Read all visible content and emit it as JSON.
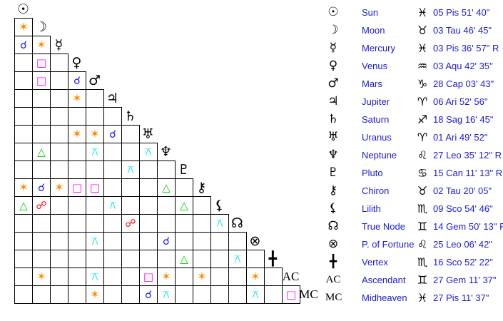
{
  "points": [
    {
      "name": "Sun",
      "glyph": "☉",
      "icon": "sun-icon",
      "sign_glyph": "♓",
      "sign_icon": "pisces-icon",
      "position": "05 Pis 51' 40\""
    },
    {
      "name": "Moon",
      "glyph": "☽",
      "icon": "moon-icon",
      "sign_glyph": "♉",
      "sign_icon": "taurus-icon",
      "position": "03 Tau 46' 45\""
    },
    {
      "name": "Mercury",
      "glyph": "☿",
      "icon": "mercury-icon",
      "sign_glyph": "♓",
      "sign_icon": "pisces-icon",
      "position": "03 Pis 36' 57\" R"
    },
    {
      "name": "Venus",
      "glyph": "♀",
      "icon": "venus-icon",
      "sign_glyph": "♒",
      "sign_icon": "aquarius-icon",
      "position": "03 Aqu 42' 35\""
    },
    {
      "name": "Mars",
      "glyph": "♂",
      "icon": "mars-icon",
      "sign_glyph": "♑",
      "sign_icon": "capricorn-icon",
      "position": "28 Cap 03' 43\""
    },
    {
      "name": "Jupiter",
      "glyph": "♃",
      "icon": "jupiter-icon",
      "sign_glyph": "♈",
      "sign_icon": "aries-icon",
      "position": "06 Ari 52' 56\""
    },
    {
      "name": "Saturn",
      "glyph": "♄",
      "icon": "saturn-icon",
      "sign_glyph": "♐",
      "sign_icon": "sagittarius-icon",
      "position": "18 Sag 16' 45\""
    },
    {
      "name": "Uranus",
      "glyph": "♅",
      "icon": "uranus-icon",
      "sign_glyph": "♈",
      "sign_icon": "aries-icon",
      "position": "01 Ari 49' 52\""
    },
    {
      "name": "Neptune",
      "glyph": "♆",
      "icon": "neptune-icon",
      "sign_glyph": "♌",
      "sign_icon": "leo-icon",
      "position": "27 Leo 35' 12\" R"
    },
    {
      "name": "Pluto",
      "glyph": "♇",
      "icon": "pluto-icon",
      "sign_glyph": "♋",
      "sign_icon": "cancer-icon",
      "position": "15 Can 11' 13\" R"
    },
    {
      "name": "Chiron",
      "glyph": "⚷",
      "icon": "chiron-icon",
      "sign_glyph": "♉",
      "sign_icon": "taurus-icon",
      "position": "02 Tau 20' 05\""
    },
    {
      "name": "Lilith",
      "glyph": "⚸",
      "icon": "lilith-icon",
      "sign_glyph": "♏",
      "sign_icon": "scorpio-icon",
      "position": "09 Sco 54' 46\""
    },
    {
      "name": "True Node",
      "glyph": "☊",
      "icon": "north-node-icon",
      "sign_glyph": "♊",
      "sign_icon": "gemini-icon",
      "position": "14 Gem 50' 13\" R"
    },
    {
      "name": "P. of Fortune",
      "glyph": "⊗",
      "icon": "part-of-fortune-icon",
      "sign_glyph": "♌",
      "sign_icon": "leo-icon",
      "position": "25 Leo 06' 42\""
    },
    {
      "name": "Vertex",
      "glyph": "╋",
      "icon": "vertex-icon",
      "sign_glyph": "♏",
      "sign_icon": "scorpio-icon",
      "position": "16 Sco 52' 22\""
    },
    {
      "name": "Ascendant",
      "glyph": "AC",
      "icon": "ascendant-icon",
      "sign_glyph": "♊",
      "sign_icon": "gemini-icon",
      "position": "27 Gem 11' 37\""
    },
    {
      "name": "Midheaven",
      "glyph": "MC",
      "icon": "midheaven-icon",
      "sign_glyph": "♓",
      "sign_icon": "pisces-icon",
      "position": "27 Pis 11' 37\""
    }
  ],
  "aspect_types": {
    "conjunction": {
      "glyph": "☌",
      "color": "#1a1aff"
    },
    "sextile": {
      "glyph": "✶",
      "color": "#ff8c00"
    },
    "square": {
      "glyph": "□",
      "color": "#ff00ff"
    },
    "trine": {
      "glyph": "△",
      "color": "#00cc00"
    },
    "opposition": {
      "glyph": "☍",
      "color": "#ff0000"
    },
    "quincunx": {
      "glyph": "⚻",
      "color": "#00e5e5"
    }
  },
  "aspects": [
    {
      "a": 1,
      "b": 0,
      "type": "sextile"
    },
    {
      "a": 2,
      "b": 0,
      "type": "conjunction"
    },
    {
      "a": 2,
      "b": 1,
      "type": "sextile"
    },
    {
      "a": 3,
      "b": 1,
      "type": "square"
    },
    {
      "a": 4,
      "b": 1,
      "type": "square"
    },
    {
      "a": 4,
      "b": 3,
      "type": "conjunction"
    },
    {
      "a": 5,
      "b": 3,
      "type": "sextile"
    },
    {
      "a": 7,
      "b": 3,
      "type": "sextile"
    },
    {
      "a": 7,
      "b": 4,
      "type": "sextile"
    },
    {
      "a": 7,
      "b": 5,
      "type": "conjunction"
    },
    {
      "a": 8,
      "b": 1,
      "type": "trine"
    },
    {
      "a": 8,
      "b": 4,
      "type": "quincunx"
    },
    {
      "a": 8,
      "b": 7,
      "type": "quincunx"
    },
    {
      "a": 9,
      "b": 6,
      "type": "quincunx"
    },
    {
      "a": 10,
      "b": 0,
      "type": "sextile"
    },
    {
      "a": 10,
      "b": 1,
      "type": "conjunction"
    },
    {
      "a": 10,
      "b": 2,
      "type": "sextile"
    },
    {
      "a": 10,
      "b": 3,
      "type": "square"
    },
    {
      "a": 10,
      "b": 4,
      "type": "square"
    },
    {
      "a": 10,
      "b": 8,
      "type": "trine"
    },
    {
      "a": 11,
      "b": 0,
      "type": "trine"
    },
    {
      "a": 11,
      "b": 1,
      "type": "opposition"
    },
    {
      "a": 11,
      "b": 5,
      "type": "quincunx"
    },
    {
      "a": 11,
      "b": 9,
      "type": "trine"
    },
    {
      "a": 12,
      "b": 6,
      "type": "opposition"
    },
    {
      "a": 12,
      "b": 11,
      "type": "quincunx"
    },
    {
      "a": 13,
      "b": 4,
      "type": "quincunx"
    },
    {
      "a": 13,
      "b": 8,
      "type": "conjunction"
    },
    {
      "a": 14,
      "b": 9,
      "type": "trine"
    },
    {
      "a": 14,
      "b": 12,
      "type": "quincunx"
    },
    {
      "a": 15,
      "b": 1,
      "type": "sextile"
    },
    {
      "a": 15,
      "b": 4,
      "type": "quincunx"
    },
    {
      "a": 15,
      "b": 7,
      "type": "square"
    },
    {
      "a": 15,
      "b": 8,
      "type": "sextile"
    },
    {
      "a": 15,
      "b": 10,
      "type": "sextile"
    },
    {
      "a": 15,
      "b": 13,
      "type": "sextile"
    },
    {
      "a": 16,
      "b": 4,
      "type": "sextile"
    },
    {
      "a": 16,
      "b": 7,
      "type": "conjunction"
    },
    {
      "a": 16,
      "b": 8,
      "type": "quincunx"
    },
    {
      "a": 16,
      "b": 13,
      "type": "quincunx"
    },
    {
      "a": 16,
      "b": 15,
      "type": "square"
    }
  ]
}
